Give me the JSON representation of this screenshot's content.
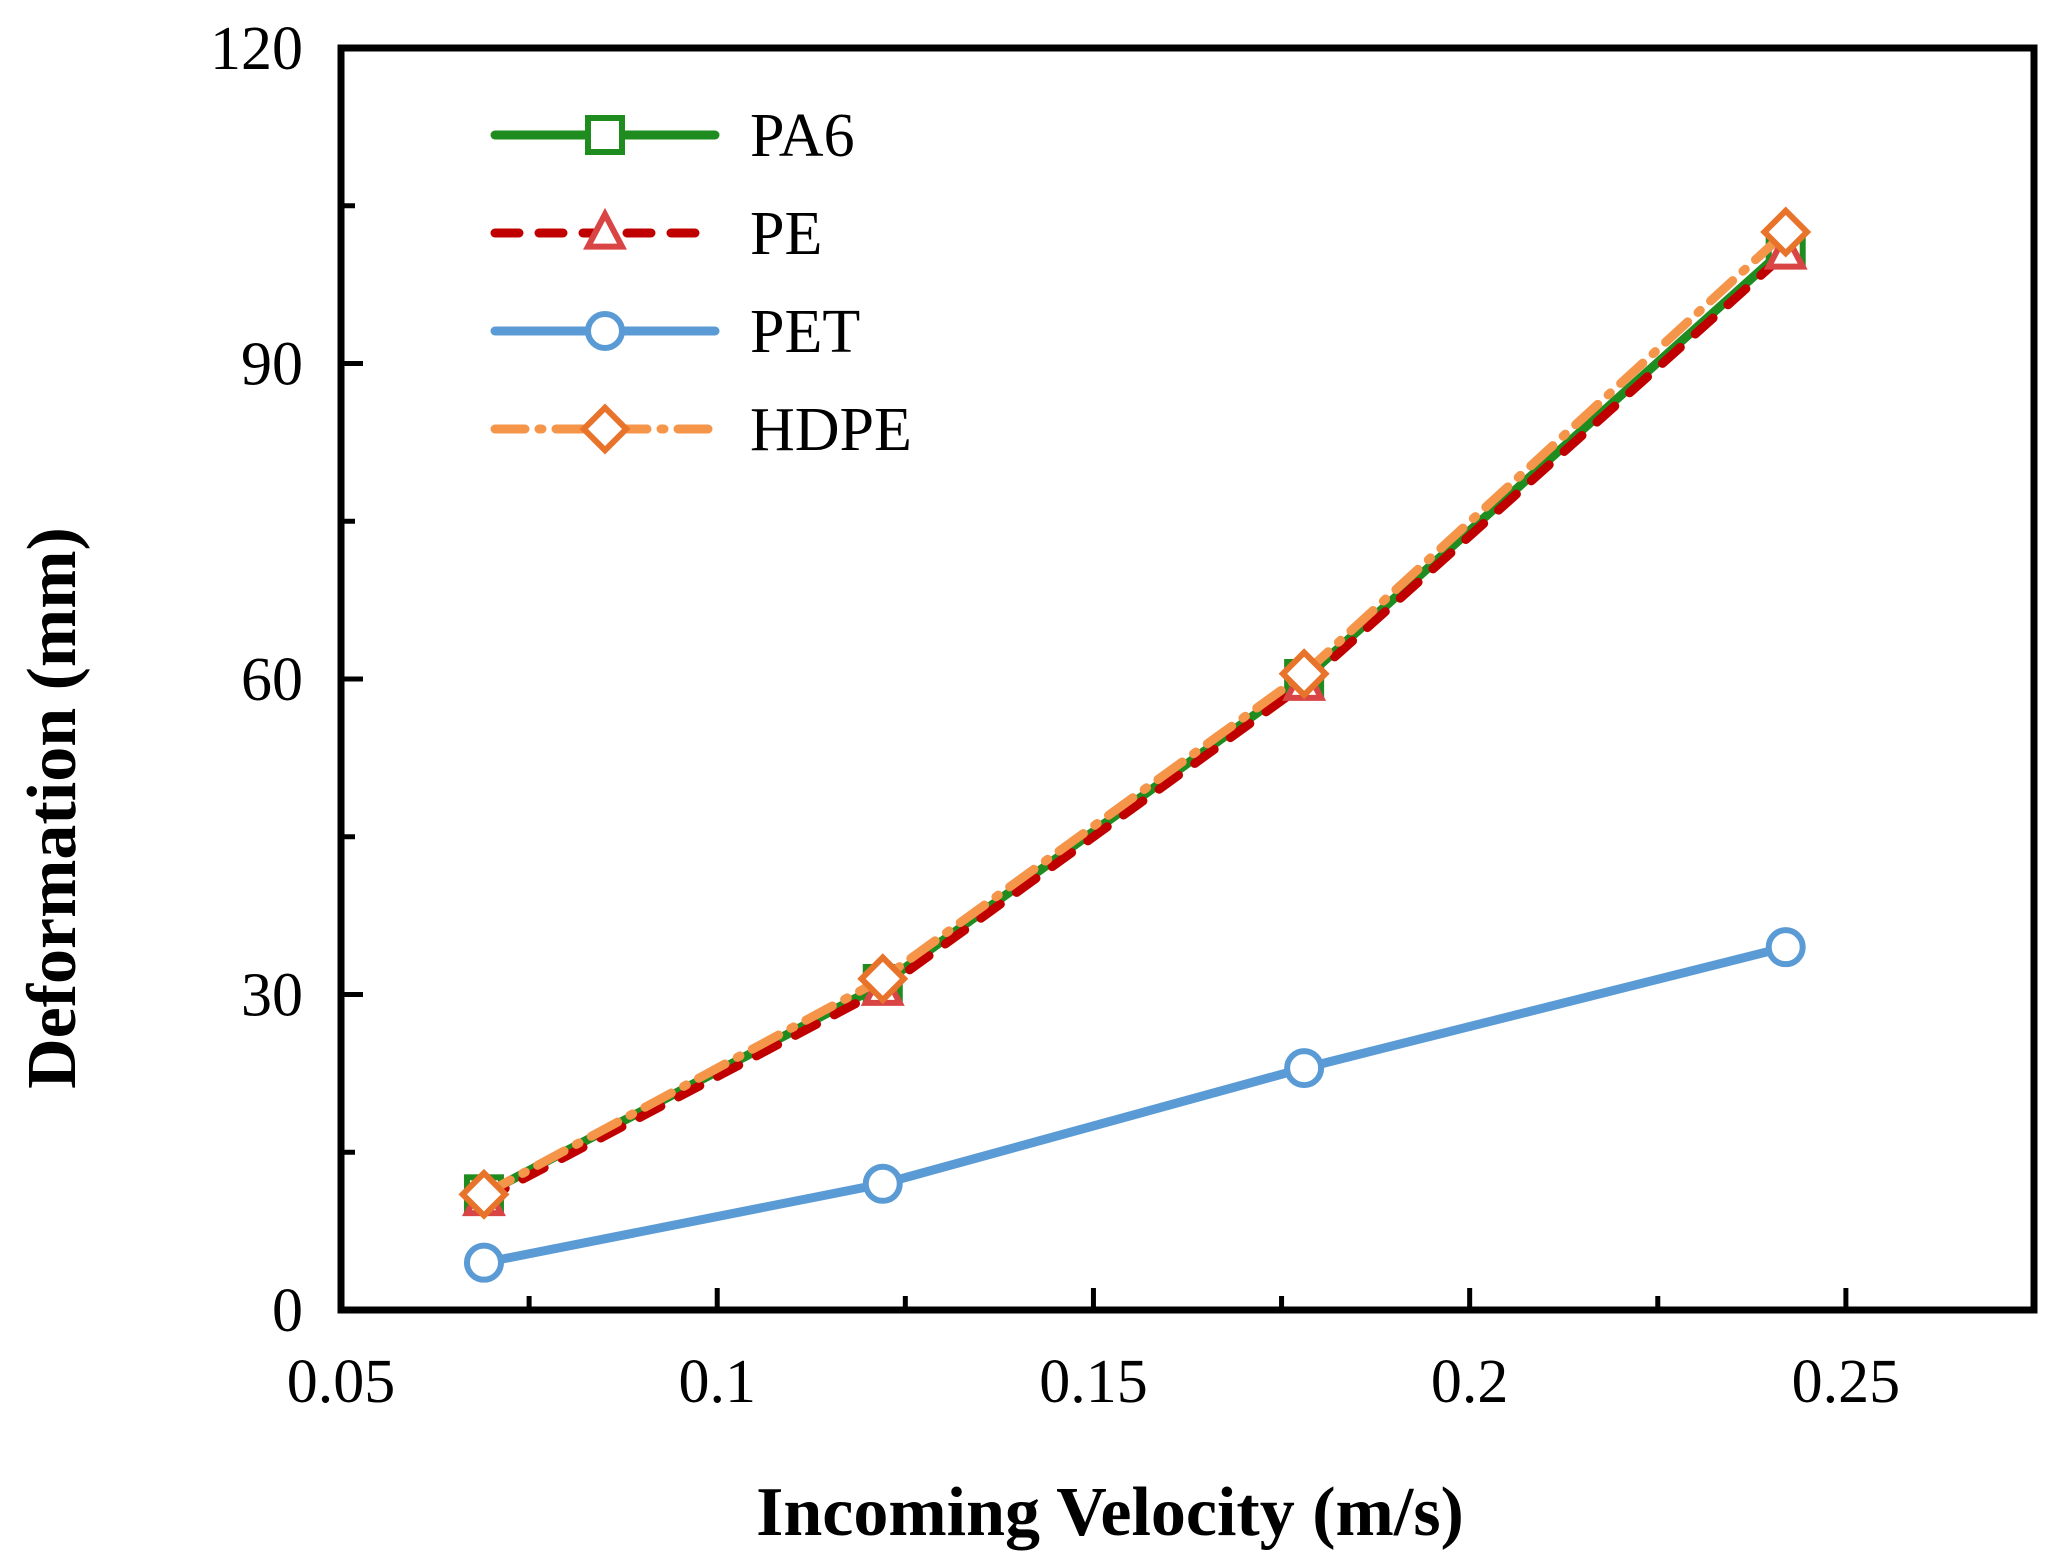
{
  "chart_data": {
    "type": "line",
    "title": "",
    "xlabel": "Incoming Velocity (m/s)",
    "ylabel": "Deformation (mm)",
    "xlim": [
      0.05,
      0.275
    ],
    "ylim": [
      0,
      120
    ],
    "x_ticks": [
      0.05,
      0.1,
      0.15,
      0.2,
      0.25
    ],
    "x_tick_labels": [
      "0.05",
      "0.1",
      "0.15",
      "0.2",
      "0.25"
    ],
    "x_minor_ticks": [
      0.075,
      0.125,
      0.175,
      0.225
    ],
    "y_ticks": [
      0,
      30,
      60,
      90,
      120
    ],
    "y_tick_labels": [
      "0",
      "30",
      "60",
      "90",
      "120"
    ],
    "y_minor_ticks": [
      15,
      45,
      75,
      105
    ],
    "grid": false,
    "legend_position": "top-left",
    "x": [
      0.069,
      0.122,
      0.178,
      0.242
    ],
    "series": [
      {
        "name": "PA6",
        "values": [
          11,
          31,
          60,
          101
        ],
        "color": "#1e8c1e",
        "marker": "square",
        "line": "solid"
      },
      {
        "name": "PE",
        "values": [
          10.5,
          30.5,
          59.5,
          100.5
        ],
        "color": "#c00000",
        "marker_color": "#d94545",
        "marker": "triangle",
        "line": "dashed"
      },
      {
        "name": "PET",
        "values": [
          4.5,
          12,
          23,
          34.5
        ],
        "color": "#5b9bd5",
        "marker": "circle",
        "line": "solid"
      },
      {
        "name": "HDPE",
        "values": [
          11,
          31.5,
          60.5,
          102.5
        ],
        "color": "#f4954a",
        "marker_color": "#e8732a",
        "marker": "diamond",
        "line": "dashdot"
      }
    ]
  }
}
